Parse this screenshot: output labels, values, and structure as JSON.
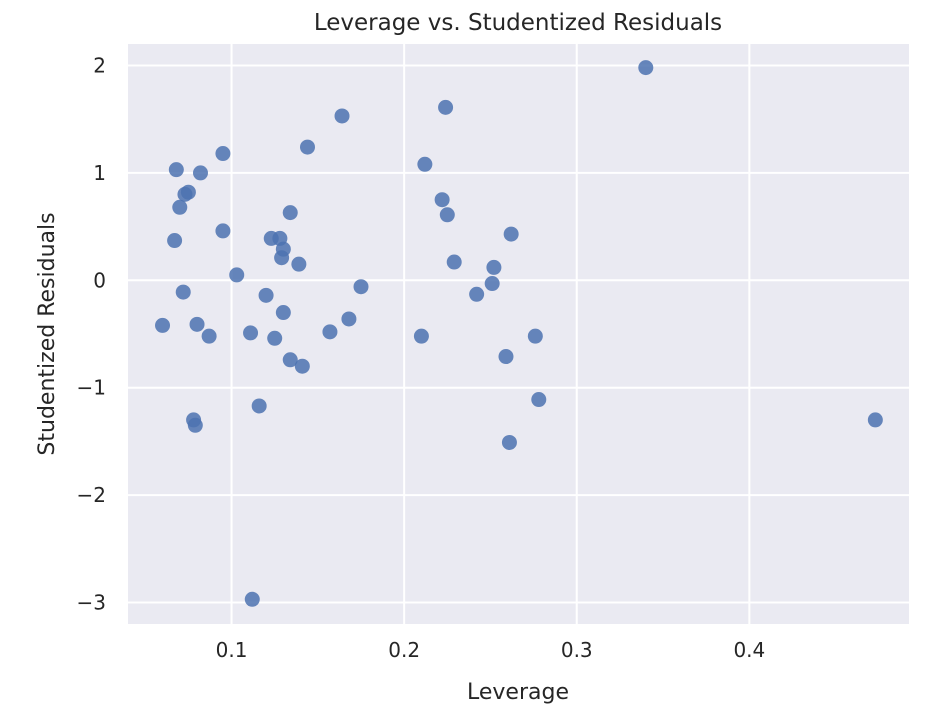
{
  "chart_data": {
    "type": "scatter",
    "title": "Leverage vs. Studentized Residuals",
    "xlabel": "Leverage",
    "ylabel": "Studentized Residuals",
    "xlim": [
      0.04,
      0.4925
    ],
    "ylim": [
      -3.2,
      2.2
    ],
    "xticks": [
      0.1,
      0.2,
      0.3,
      0.4
    ],
    "xtick_labels": [
      "0.1",
      "0.2",
      "0.3",
      "0.4"
    ],
    "yticks": [
      2,
      1,
      0,
      -1,
      -2,
      -3
    ],
    "ytick_labels": [
      "2",
      "1",
      "0",
      "−1",
      "−2",
      "−3"
    ],
    "grid": true,
    "color": "#4c72b0",
    "background": "#eaeaf2",
    "series": [
      {
        "points": [
          [
            0.06,
            -0.42
          ],
          [
            0.067,
            0.37
          ],
          [
            0.068,
            1.03
          ],
          [
            0.07,
            0.68
          ],
          [
            0.072,
            -0.11
          ],
          [
            0.073,
            0.8
          ],
          [
            0.075,
            0.82
          ],
          [
            0.078,
            -1.3
          ],
          [
            0.079,
            -1.35
          ],
          [
            0.08,
            -0.41
          ],
          [
            0.082,
            1.0
          ],
          [
            0.087,
            -0.52
          ],
          [
            0.095,
            1.18
          ],
          [
            0.095,
            0.46
          ],
          [
            0.103,
            0.05
          ],
          [
            0.111,
            -0.49
          ],
          [
            0.112,
            -2.97
          ],
          [
            0.116,
            -1.17
          ],
          [
            0.12,
            -0.14
          ],
          [
            0.123,
            0.39
          ],
          [
            0.125,
            -0.54
          ],
          [
            0.128,
            0.39
          ],
          [
            0.129,
            0.21
          ],
          [
            0.13,
            0.29
          ],
          [
            0.13,
            -0.3
          ],
          [
            0.134,
            0.63
          ],
          [
            0.134,
            -0.74
          ],
          [
            0.139,
            0.15
          ],
          [
            0.141,
            -0.8
          ],
          [
            0.144,
            1.24
          ],
          [
            0.157,
            -0.48
          ],
          [
            0.164,
            1.53
          ],
          [
            0.168,
            -0.36
          ],
          [
            0.175,
            -0.06
          ],
          [
            0.21,
            -0.52
          ],
          [
            0.212,
            1.08
          ],
          [
            0.222,
            0.75
          ],
          [
            0.224,
            1.61
          ],
          [
            0.225,
            0.61
          ],
          [
            0.229,
            0.17
          ],
          [
            0.242,
            -0.13
          ],
          [
            0.251,
            -0.03
          ],
          [
            0.252,
            0.12
          ],
          [
            0.259,
            -0.71
          ],
          [
            0.261,
            -1.51
          ],
          [
            0.262,
            0.43
          ],
          [
            0.276,
            -0.52
          ],
          [
            0.278,
            -1.11
          ],
          [
            0.34,
            1.98
          ],
          [
            0.473,
            -1.3
          ]
        ]
      }
    ]
  }
}
